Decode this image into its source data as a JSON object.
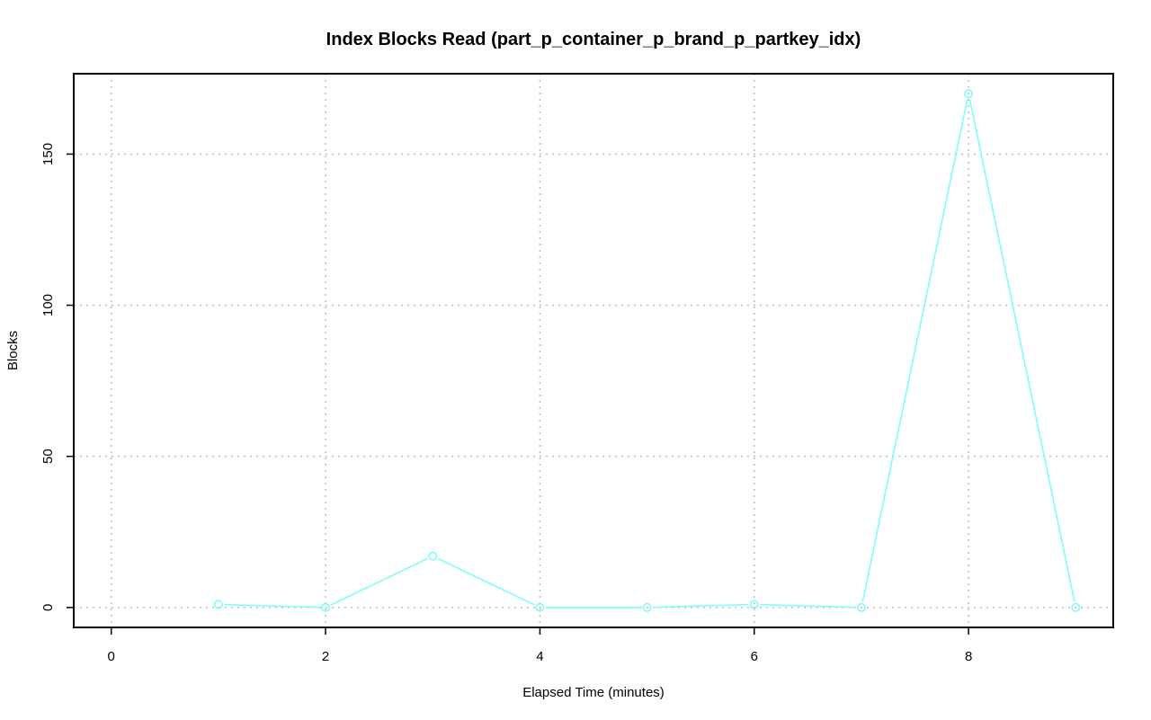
{
  "chart_data": {
    "type": "line",
    "title": "Index Blocks Read (part_p_container_p_brand_p_partkey_idx)",
    "xlabel": "Elapsed Time (minutes)",
    "ylabel": "Blocks",
    "xlim": [
      -0.35,
      9.35
    ],
    "ylim": [
      -6.6,
      176.6
    ],
    "x_ticks": [
      0,
      2,
      4,
      6,
      8
    ],
    "y_ticks": [
      0,
      50,
      100,
      150
    ],
    "x_tick_labels": [
      "0",
      "2",
      "4",
      "6",
      "8"
    ],
    "y_tick_labels": [
      "0",
      "50",
      "100",
      "150"
    ],
    "grid": true,
    "series": [
      {
        "color": "#7ffcfc",
        "x": [
          1,
          2,
          3,
          4,
          5,
          6,
          7,
          8,
          9
        ],
        "y": [
          1,
          0,
          17,
          0,
          0,
          1,
          0,
          170,
          0
        ]
      }
    ]
  }
}
